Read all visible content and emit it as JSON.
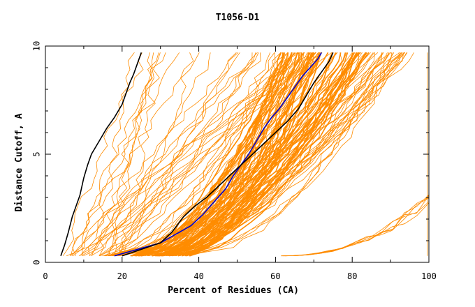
{
  "chart_data": {
    "type": "line",
    "title": "T1056-D1",
    "xlabel": "Percent of Residues (CA)",
    "ylabel": "Distance Cutoff, A",
    "xlim": [
      0,
      100
    ],
    "ylim": [
      0,
      10
    ],
    "x_ticks": [
      "0",
      "20",
      "40",
      "60",
      "80",
      "100"
    ],
    "y_ticks": [
      "0",
      "5",
      "10"
    ],
    "grid": false,
    "legend": "none",
    "colors": {
      "models": "#ff8c00",
      "reference_a": "#000000",
      "reference_b": "#0000cc",
      "reference_c": "#000000"
    },
    "highlighted_series": [
      {
        "color": "#000000",
        "points": [
          [
            4,
            0.3
          ],
          [
            5,
            0.8
          ],
          [
            6,
            1.4
          ],
          [
            7,
            2.1
          ],
          [
            8,
            2.6
          ],
          [
            9,
            3.1
          ],
          [
            10,
            3.9
          ],
          [
            11,
            4.5
          ],
          [
            12,
            5.0
          ],
          [
            14,
            5.6
          ],
          [
            16,
            6.2
          ],
          [
            18,
            6.7
          ],
          [
            20,
            7.3
          ],
          [
            21,
            7.8
          ],
          [
            22,
            8.3
          ],
          [
            23,
            8.7
          ],
          [
            24,
            9.2
          ],
          [
            25,
            9.7
          ]
        ]
      },
      {
        "color": "#0000cc",
        "points": [
          [
            18,
            0.3
          ],
          [
            22,
            0.5
          ],
          [
            26,
            0.7
          ],
          [
            30,
            0.9
          ],
          [
            34,
            1.3
          ],
          [
            38,
            1.7
          ],
          [
            41,
            2.2
          ],
          [
            44,
            2.8
          ],
          [
            47,
            3.4
          ],
          [
            49,
            4.0
          ],
          [
            51,
            4.5
          ],
          [
            53,
            5.0
          ],
          [
            55,
            5.6
          ],
          [
            57,
            6.2
          ],
          [
            59,
            6.7
          ],
          [
            61,
            7.1
          ],
          [
            63,
            7.6
          ],
          [
            65,
            8.1
          ],
          [
            67,
            8.6
          ],
          [
            69,
            9.0
          ],
          [
            71,
            9.4
          ],
          [
            72,
            9.7
          ]
        ]
      },
      {
        "color": "#000000",
        "points": [
          [
            20,
            0.3
          ],
          [
            25,
            0.6
          ],
          [
            30,
            0.9
          ],
          [
            33,
            1.4
          ],
          [
            36,
            2.1
          ],
          [
            39,
            2.6
          ],
          [
            42,
            3.0
          ],
          [
            45,
            3.5
          ],
          [
            48,
            4.0
          ],
          [
            51,
            4.5
          ],
          [
            54,
            5.0
          ],
          [
            57,
            5.5
          ],
          [
            60,
            6.0
          ],
          [
            63,
            6.5
          ],
          [
            66,
            7.1
          ],
          [
            68,
            7.7
          ],
          [
            70,
            8.3
          ],
          [
            72,
            8.8
          ],
          [
            74,
            9.3
          ],
          [
            75,
            9.7
          ]
        ]
      }
    ]
  }
}
